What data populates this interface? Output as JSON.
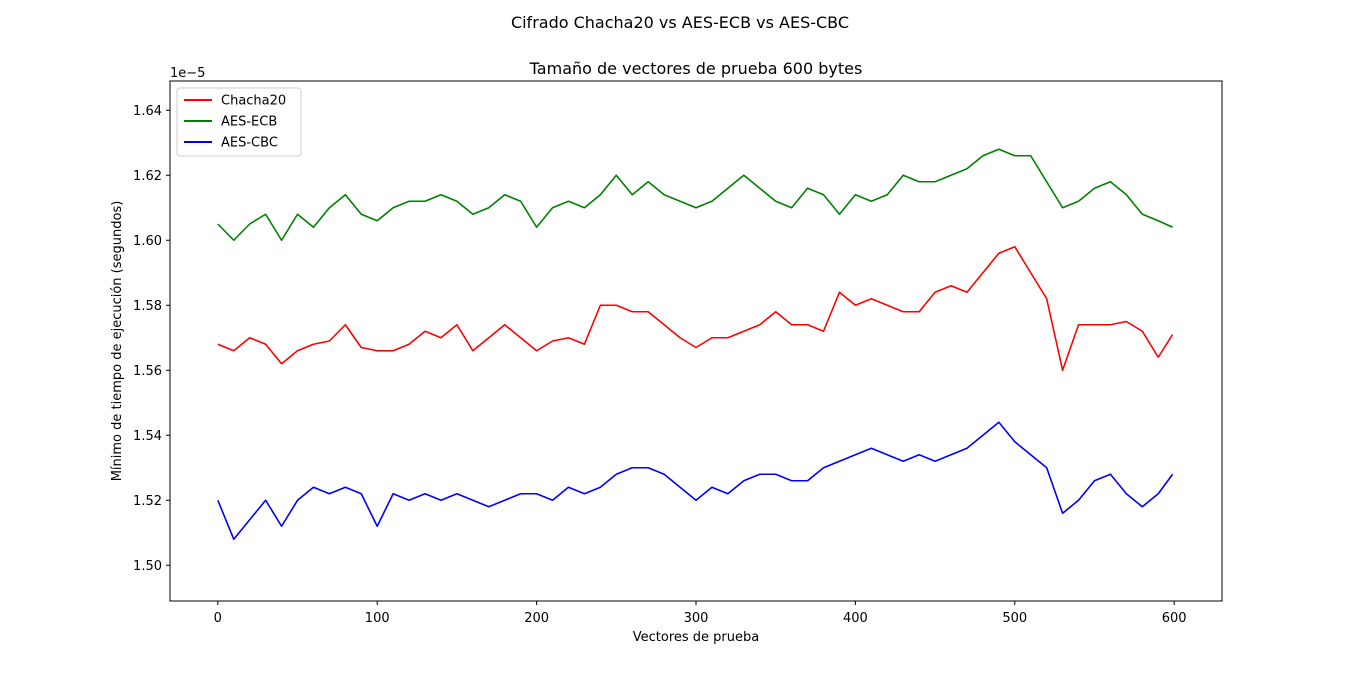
{
  "figure": {
    "suptitle": "Cifrado Chacha20 vs AES-ECB vs AES-CBC"
  },
  "chart_data": {
    "type": "line",
    "title": "Tamaño de vectores de prueba 600 bytes",
    "xlabel": "Vectores de prueba",
    "ylabel": "Mínimo de tiempo de ejecución (segundos)",
    "y_offset_label": "1e−5",
    "xlim": [
      -30,
      630
    ],
    "ylim": [
      1.489,
      1.649
    ],
    "x_ticks": [
      0,
      100,
      200,
      300,
      400,
      500,
      600
    ],
    "x_tick_labels": [
      "0",
      "100",
      "200",
      "300",
      "400",
      "500",
      "600"
    ],
    "y_ticks": [
      1.5,
      1.52,
      1.54,
      1.56,
      1.58,
      1.6,
      1.62,
      1.64
    ],
    "y_tick_labels": [
      "1.50",
      "1.52",
      "1.54",
      "1.56",
      "1.58",
      "1.60",
      "1.62",
      "1.64"
    ],
    "grid": false,
    "legend": {
      "position": "top-left",
      "entries": [
        "Chacha20",
        "AES-ECB",
        "AES-CBC"
      ]
    },
    "x": [
      0,
      10,
      20,
      30,
      40,
      50,
      60,
      70,
      80,
      90,
      100,
      110,
      120,
      130,
      140,
      150,
      160,
      170,
      180,
      190,
      200,
      210,
      220,
      230,
      240,
      250,
      260,
      270,
      280,
      290,
      300,
      310,
      320,
      330,
      340,
      350,
      360,
      370,
      380,
      390,
      400,
      410,
      420,
      430,
      440,
      450,
      460,
      470,
      480,
      490,
      500,
      510,
      520,
      530,
      540,
      550,
      560,
      570,
      580,
      590,
      599
    ],
    "series": [
      {
        "name": "Chacha20",
        "color": "#ff0000",
        "values": [
          1.568,
          1.566,
          1.57,
          1.568,
          1.562,
          1.566,
          1.568,
          1.569,
          1.574,
          1.567,
          1.566,
          1.566,
          1.568,
          1.572,
          1.57,
          1.574,
          1.566,
          1.57,
          1.574,
          1.57,
          1.566,
          1.569,
          1.57,
          1.568,
          1.58,
          1.58,
          1.578,
          1.578,
          1.574,
          1.57,
          1.567,
          1.57,
          1.57,
          1.572,
          1.574,
          1.578,
          1.574,
          1.574,
          1.572,
          1.584,
          1.58,
          1.582,
          1.58,
          1.578,
          1.578,
          1.584,
          1.586,
          1.584,
          1.59,
          1.596,
          1.598,
          1.59,
          1.582,
          1.56,
          1.574,
          1.574,
          1.574,
          1.575,
          1.572,
          1.564,
          1.571
        ]
      },
      {
        "name": "AES-ECB",
        "color": "#008000",
        "values": [
          1.605,
          1.6,
          1.605,
          1.608,
          1.6,
          1.608,
          1.604,
          1.61,
          1.614,
          1.608,
          1.606,
          1.61,
          1.612,
          1.612,
          1.614,
          1.612,
          1.608,
          1.61,
          1.614,
          1.612,
          1.604,
          1.61,
          1.612,
          1.61,
          1.614,
          1.62,
          1.614,
          1.618,
          1.614,
          1.612,
          1.61,
          1.612,
          1.616,
          1.62,
          1.616,
          1.612,
          1.61,
          1.616,
          1.614,
          1.608,
          1.614,
          1.612,
          1.614,
          1.62,
          1.618,
          1.618,
          1.62,
          1.622,
          1.626,
          1.628,
          1.626,
          1.626,
          1.618,
          1.61,
          1.612,
          1.616,
          1.618,
          1.614,
          1.608,
          1.606,
          1.604
        ]
      },
      {
        "name": "AES-CBC",
        "color": "#0000ff",
        "values": [
          1.52,
          1.508,
          1.514,
          1.52,
          1.512,
          1.52,
          1.524,
          1.522,
          1.524,
          1.522,
          1.512,
          1.522,
          1.52,
          1.522,
          1.52,
          1.522,
          1.52,
          1.518,
          1.52,
          1.522,
          1.522,
          1.52,
          1.524,
          1.522,
          1.524,
          1.528,
          1.53,
          1.53,
          1.528,
          1.524,
          1.52,
          1.524,
          1.522,
          1.526,
          1.528,
          1.528,
          1.526,
          1.526,
          1.53,
          1.532,
          1.534,
          1.536,
          1.534,
          1.532,
          1.534,
          1.532,
          1.534,
          1.536,
          1.54,
          1.544,
          1.538,
          1.534,
          1.53,
          1.516,
          1.52,
          1.526,
          1.528,
          1.522,
          1.518,
          1.522,
          1.528
        ]
      }
    ]
  }
}
